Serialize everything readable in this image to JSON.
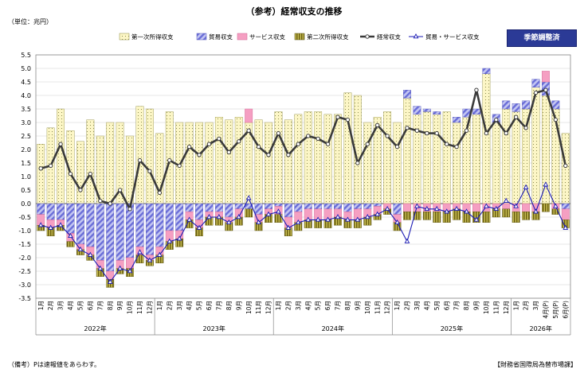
{
  "header": {
    "title": "（参考）経常収支の推移",
    "unit": "（単位：兆円）",
    "badge": "季節調整済"
  },
  "footer": {
    "note": "（備考）Pは速報値をあらわす。",
    "source": "【財務省国際局為替市場課】"
  },
  "colors": {
    "primary_income": "#fcf6c6",
    "trade": "#7c80e0",
    "services": "#f59fc2",
    "secondary_income": "#8a7a10",
    "current_account_line": "#3a3a3a",
    "trade_services_line": "#1a1ab4",
    "badge": "#2b3a96"
  },
  "chart_data": {
    "type": "bar",
    "stacked": true,
    "ylim": [
      -3.5,
      5.5
    ],
    "yticks": [
      "5.5",
      "5.0",
      "4.5",
      "4.0",
      "3.5",
      "3.0",
      "2.5",
      "2.0",
      "1.5",
      "1.0",
      "0.5",
      "0.0",
      "-0.5",
      "-1.0",
      "-1.5",
      "-2.0",
      "-2.5",
      "-3.0",
      "-3.5"
    ],
    "grid": true,
    "legend_position": "top",
    "categories": [
      "1月",
      "2月",
      "3月",
      "4月",
      "5月",
      "6月",
      "7月",
      "8月",
      "9月",
      "10月",
      "11月",
      "12月",
      "1月",
      "2月",
      "3月",
      "4月",
      "5月",
      "6月",
      "7月",
      "8月",
      "9月",
      "10月",
      "11月",
      "12月",
      "1月",
      "2月",
      "3月",
      "4月",
      "5月",
      "6月",
      "7月",
      "8月",
      "9月",
      "10月",
      "11月",
      "12月",
      "1月",
      "2月",
      "3月",
      "4月",
      "5月",
      "6月",
      "7月",
      "8月",
      "9月",
      "10月",
      "11月",
      "12月",
      "1月",
      "2月",
      "3月",
      "4月(P)",
      "5月(P)",
      "6月(P)"
    ],
    "year_groups": [
      {
        "label": "2022年",
        "count": 12
      },
      {
        "label": "2023年",
        "count": 12
      },
      {
        "label": "2024年",
        "count": 12
      },
      {
        "label": "2025年",
        "count": 12
      },
      {
        "label": "2026年",
        "count": 6
      }
    ],
    "series": [
      {
        "name": "第一次所得収支",
        "type": "bar",
        "values": [
          2.2,
          2.8,
          3.5,
          2.7,
          2.3,
          3.1,
          2.5,
          3.0,
          3.0,
          2.5,
          3.6,
          3.5,
          2.6,
          3.4,
          3.0,
          3.0,
          3.0,
          3.0,
          3.2,
          3.1,
          3.2,
          3.0,
          3.1,
          3.0,
          3.4,
          3.1,
          3.3,
          3.4,
          3.4,
          3.3,
          3.3,
          4.1,
          4.0,
          3.0,
          3.2,
          3.4,
          3.0,
          3.9,
          3.3,
          3.4,
          3.3,
          3.4,
          3.0,
          3.2,
          3.3,
          4.8,
          3.0,
          3.5,
          3.4,
          3.5,
          4.3,
          4.0,
          3.5,
          2.6
        ]
      },
      {
        "name": "貿易収支",
        "type": "bar",
        "values": [
          -0.4,
          -0.6,
          -0.6,
          -1.1,
          -1.5,
          -1.6,
          -2.1,
          -2.5,
          -2.1,
          -2.0,
          -1.6,
          -1.9,
          -1.6,
          -1.0,
          -1.0,
          -0.3,
          -0.6,
          -0.3,
          -0.3,
          -0.5,
          -0.2,
          -0.2,
          -0.4,
          -0.2,
          -0.1,
          -0.5,
          -0.3,
          -0.2,
          -0.2,
          -0.2,
          -0.2,
          -0.3,
          -0.2,
          -0.2,
          -0.1,
          0,
          -0.4,
          0.3,
          0.3,
          0.1,
          0.1,
          0,
          0.2,
          0.3,
          0.2,
          0.2,
          0.3,
          0.3,
          0.3,
          0.3,
          0.3,
          0.5,
          0.3,
          -0.2
        ]
      },
      {
        "name": "サービス収支",
        "type": "bar",
        "values": [
          -0.4,
          -0.3,
          -0.2,
          -0.3,
          -0.2,
          -0.3,
          -0.3,
          -0.3,
          -0.3,
          -0.4,
          -0.3,
          -0.2,
          -0.3,
          -0.4,
          -0.3,
          -0.3,
          -0.3,
          -0.2,
          -0.2,
          -0.2,
          -0.3,
          0.5,
          -0.3,
          -0.2,
          -0.3,
          -0.4,
          -0.4,
          -0.4,
          -0.4,
          -0.4,
          -0.3,
          -0.3,
          -0.4,
          -0.3,
          -0.3,
          -0.2,
          -0.3,
          -0.3,
          -0.3,
          -0.3,
          -0.3,
          -0.3,
          -0.2,
          -0.3,
          -0.3,
          -0.3,
          -0.2,
          -0.2,
          -0.3,
          -0.3,
          -0.3,
          0.4,
          -0.2,
          -0.4
        ]
      },
      {
        "name": "第二次所得収支",
        "type": "bar",
        "values": [
          -0.2,
          -0.3,
          -0.2,
          -0.2,
          -0.2,
          -0.2,
          -0.3,
          -0.3,
          -0.2,
          -0.3,
          -0.3,
          -0.2,
          -0.3,
          -0.3,
          -0.3,
          -0.3,
          -0.3,
          -0.3,
          -0.3,
          -0.3,
          -0.3,
          -0.3,
          -0.3,
          -0.3,
          -0.3,
          -0.3,
          -0.3,
          -0.3,
          -0.3,
          -0.3,
          -0.3,
          -0.3,
          -0.3,
          -0.3,
          -0.2,
          -0.2,
          -0.3,
          -0.3,
          -0.3,
          -0.3,
          -0.4,
          -0.4,
          -0.4,
          -0.4,
          -0.4,
          -0.4,
          -0.3,
          -0.3,
          -0.4,
          -0.3,
          -0.3,
          -0.3,
          -0.2,
          -0.3
        ]
      },
      {
        "name": "経常収支",
        "type": "line",
        "values": [
          1.3,
          1.4,
          2.2,
          1.1,
          0.5,
          1.1,
          0.1,
          0.0,
          0.5,
          -0.2,
          1.6,
          1.2,
          0.4,
          1.6,
          1.4,
          2.1,
          1.8,
          2.2,
          2.4,
          1.9,
          2.3,
          2.7,
          2.1,
          1.8,
          2.6,
          1.8,
          2.2,
          2.5,
          2.4,
          2.2,
          3.2,
          3.1,
          1.5,
          2.2,
          2.9,
          2.5,
          2.1,
          2.8,
          2.7,
          2.6,
          2.6,
          2.2,
          2.1,
          2.7,
          4.2,
          2.6,
          3.1,
          2.6,
          3.2,
          2.8,
          4.1,
          4.2,
          3.1,
          1.4
        ]
      },
      {
        "name": "貿易・サービス収支",
        "type": "line",
        "values": [
          -0.8,
          -0.9,
          -0.8,
          -1.2,
          -1.7,
          -1.9,
          -2.4,
          -2.9,
          -2.4,
          -2.5,
          -1.8,
          -2.1,
          -1.9,
          -1.4,
          -1.3,
          -0.6,
          -0.9,
          -0.5,
          -0.5,
          -0.7,
          -0.5,
          0.2,
          -0.7,
          -0.4,
          -0.3,
          -0.9,
          -0.7,
          -0.6,
          -0.6,
          -0.6,
          -0.5,
          -0.6,
          -0.6,
          -0.5,
          -0.4,
          -0.2,
          -0.7,
          -1.4,
          -0.1,
          -0.2,
          -0.2,
          -0.3,
          -0.2,
          -0.3,
          -0.6,
          -0.1,
          -0.2,
          0.1,
          -0.1,
          0.6,
          -0.3,
          0.7,
          -0.1,
          -0.9
        ]
      }
    ]
  }
}
